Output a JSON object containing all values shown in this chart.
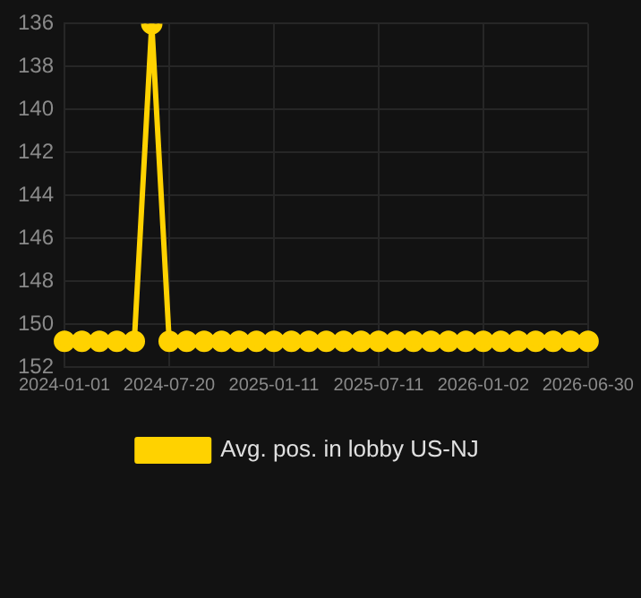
{
  "chart_data": {
    "type": "line",
    "categories": [
      "2024-01-01",
      null,
      null,
      null,
      null,
      null,
      "2024-07-20",
      null,
      null,
      null,
      null,
      null,
      "2025-01-11",
      null,
      null,
      null,
      null,
      null,
      "2025-07-11",
      null,
      null,
      null,
      null,
      null,
      "2026-01-02",
      null,
      null,
      null,
      null,
      null,
      "2026-06-30"
    ],
    "series": [
      {
        "name": "Avg. pos. in lobby US-NJ",
        "color": "#ffd200",
        "values": [
          150.8,
          150.8,
          150.8,
          150.8,
          150.8,
          136,
          150.8,
          150.8,
          150.8,
          150.8,
          150.8,
          150.8,
          150.8,
          150.8,
          150.8,
          150.8,
          150.8,
          150.8,
          150.8,
          150.8,
          150.8,
          150.8,
          150.8,
          150.8,
          150.8,
          150.8,
          150.8,
          150.8,
          150.8,
          150.8,
          150.8
        ]
      }
    ],
    "ylim": [
      152,
      136
    ],
    "yticks": [
      136,
      138,
      140,
      142,
      144,
      146,
      148,
      150,
      152
    ],
    "grid": true,
    "legend": "bottom",
    "marker": "circle",
    "line_style": "solid"
  }
}
